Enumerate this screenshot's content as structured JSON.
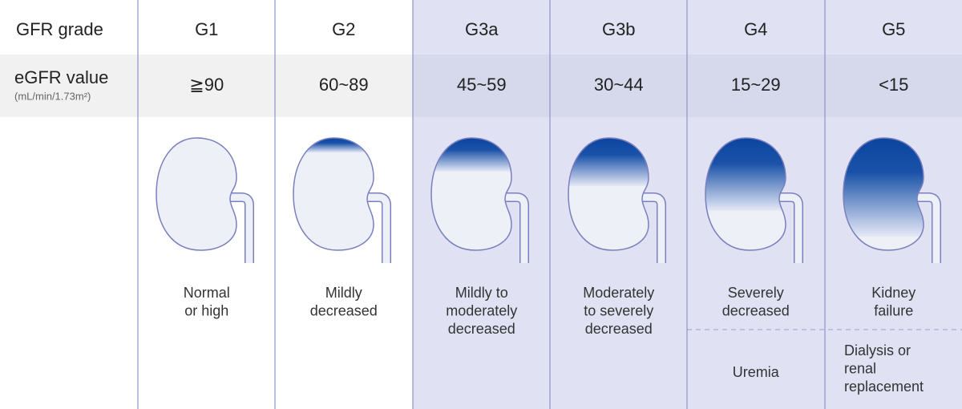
{
  "header": {
    "row_labels": [
      "GFR grade",
      "eGFR value"
    ],
    "unit": "(mL/min/1.73m²)"
  },
  "stages": [
    {
      "grade": "G1",
      "egfr": "≧90",
      "description": [
        "Normal",
        "or high"
      ]
    },
    {
      "grade": "G2",
      "egfr": "60~89",
      "description": [
        "Mildly",
        "decreased"
      ]
    },
    {
      "grade": "G3a",
      "egfr": "45~59",
      "description": [
        "Mildly to",
        "moderately",
        "decreased"
      ]
    },
    {
      "grade": "G3b",
      "egfr": "30~44",
      "description": [
        "Moderately",
        "to severely",
        "decreased"
      ]
    },
    {
      "grade": "G4",
      "egfr": "15~29",
      "description": [
        "Severely",
        "decreased"
      ],
      "note": [
        "Uremia"
      ]
    },
    {
      "grade": "G5",
      "egfr": "<15",
      "description": [
        "Kidney",
        "failure"
      ],
      "note": [
        "Dialysis or",
        "renal",
        "replacement"
      ]
    }
  ]
}
